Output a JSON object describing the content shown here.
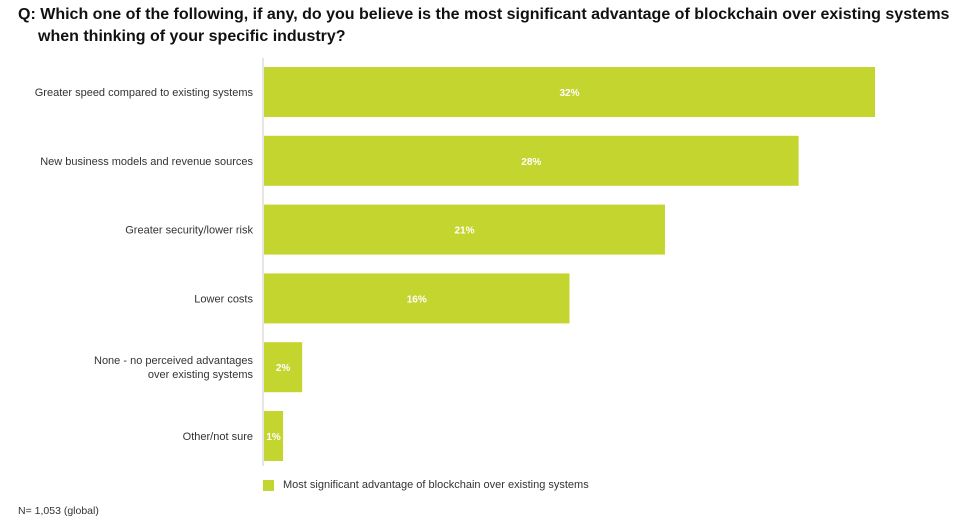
{
  "title": {
    "prefix": "Q:",
    "line1": "Which one of the following, if any, do you believe is the most significant advantage of blockchain over existing systems",
    "line2": "when thinking of your specific industry?"
  },
  "footnote": "N= 1,053 (global)",
  "colors": {
    "bar": "#c5d530",
    "axis": "#cccccc"
  },
  "chart_data": {
    "type": "bar",
    "orientation": "horizontal",
    "categories": [
      "Greater speed compared to existing systems",
      "New business models and revenue sources",
      "Greater security/lower risk",
      "Lower costs",
      "None - no perceived advantages over existing systems",
      "Other/not sure"
    ],
    "category_lines": [
      [
        "Greater speed compared to existing systems"
      ],
      [
        "New business models and revenue sources"
      ],
      [
        "Greater security/lower risk"
      ],
      [
        "Lower costs"
      ],
      [
        "None - no perceived advantages",
        "over existing systems"
      ],
      [
        "Other/not sure"
      ]
    ],
    "values": [
      32,
      28,
      21,
      16,
      2,
      1
    ],
    "value_labels": [
      "32%",
      "28%",
      "21%",
      "16%",
      "2%",
      "1%"
    ],
    "series": [
      {
        "name": "Most significant advantage of blockchain over existing systems",
        "values": [
          32,
          28,
          21,
          16,
          2,
          1
        ]
      }
    ],
    "xlim": [
      0,
      32
    ],
    "grid": false,
    "legend_position": "bottom-left"
  }
}
